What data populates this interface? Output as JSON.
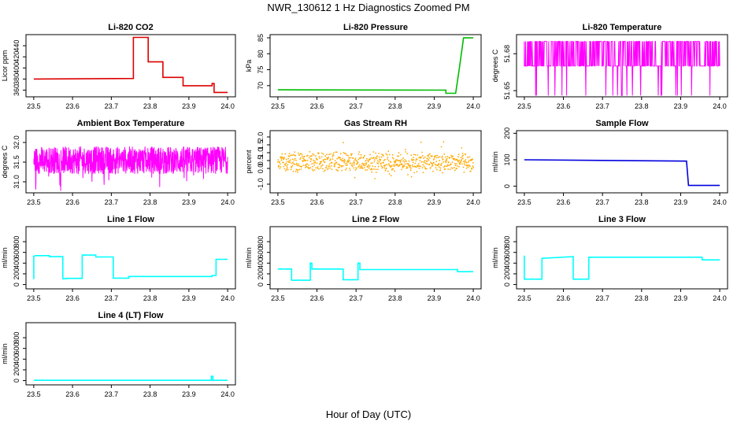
{
  "figure": {
    "title": "NWR_130612  1 Hz Diagnostics Zoomed PM",
    "xlabel": "Hour of Day (UTC)"
  },
  "chart_data": [
    {
      "type": "line",
      "title": "Li-820 CO2",
      "ylabel": "Licor ppm",
      "color": "#dd0000",
      "xlim": [
        23.48,
        24.02
      ],
      "ylim": [
        348,
        460
      ],
      "xticks": [
        "23.5",
        "23.6",
        "23.7",
        "23.8",
        "23.9",
        "24.0"
      ],
      "yticks": [
        "360",
        "380",
        "400",
        "420",
        "440"
      ],
      "series": [
        {
          "x": [
            23.5,
            23.757,
            23.757,
            23.795,
            23.795,
            23.833,
            23.833,
            23.885,
            23.885,
            23.96,
            23.96,
            23.965,
            23.965,
            24.0
          ],
          "y": [
            380,
            381,
            455,
            455,
            411,
            411,
            383,
            383,
            368,
            368,
            372,
            372,
            356,
            356
          ]
        }
      ]
    },
    {
      "type": "line",
      "title": "Li-820 Pressure",
      "ylabel": "kPa",
      "color": "#00bb00",
      "xlim": [
        23.48,
        24.02
      ],
      "ylim": [
        66.5,
        86
      ],
      "xticks": [
        "23.5",
        "23.6",
        "23.7",
        "23.8",
        "23.9",
        "24.0"
      ],
      "yticks": [
        "70",
        "75",
        "80",
        "85"
      ],
      "series": [
        {
          "x": [
            23.5,
            23.93,
            23.93,
            23.955,
            23.965,
            23.975,
            24.0
          ],
          "y": [
            68.7,
            68.6,
            67.6,
            67.6,
            76,
            85,
            85
          ]
        }
      ]
    },
    {
      "type": "line",
      "title": "Li-820 Temperature",
      "ylabel": "degrees C",
      "color": "#ff00ff",
      "xlim": [
        23.48,
        24.02
      ],
      "ylim": [
        51.645,
        51.6955
      ],
      "xticks": [
        "23.5",
        "23.6",
        "23.7",
        "23.8",
        "23.9",
        "24.0"
      ],
      "yticks": [
        "51.65",
        "51.68"
      ],
      "series": [
        {
          "x": [
            23.5,
            24.0
          ],
          "y": [
            51.67,
            51.69
          ]
        }
      ]
    },
    {
      "type": "line",
      "title": "Ambient Box Temperature",
      "ylabel": "degrees C",
      "color": "#ff00ff",
      "xlim": [
        23.48,
        24.02
      ],
      "ylim": [
        30.72,
        32.3
      ],
      "xticks": [
        "23.5",
        "23.6",
        "23.7",
        "23.8",
        "23.9",
        "24.0"
      ],
      "yticks": [
        "31.0",
        "31.5",
        "32.0"
      ],
      "series": [
        {
          "x": [
            23.5,
            24.0
          ],
          "y": [
            31.55,
            31.6
          ]
        }
      ]
    },
    {
      "type": "scatter",
      "title": "Gas Stream RH",
      "ylabel": "percent",
      "color": "#ffaa00",
      "xlim": [
        23.48,
        24.02
      ],
      "ylim": [
        -1.55,
        2.4
      ],
      "xticks": [
        "23.5",
        "23.6",
        "23.7",
        "23.8",
        "23.9",
        "24.0"
      ],
      "yticks": [
        "-1.0",
        "0.0",
        "0.5",
        "1.0",
        "1.5",
        "2.0"
      ],
      "series": [
        {
          "x": [
            23.5,
            24.0
          ],
          "y": [
            0.4,
            0.4
          ]
        }
      ]
    },
    {
      "type": "line",
      "title": "Sample Flow",
      "ylabel": "ml/min",
      "color": "#0000dd",
      "xlim": [
        23.48,
        24.02
      ],
      "ylim": [
        -25,
        210
      ],
      "xticks": [
        "23.5",
        "23.6",
        "23.7",
        "23.8",
        "23.9",
        "24.0"
      ],
      "yticks": [
        "0",
        "100",
        "200"
      ],
      "series": [
        {
          "x": [
            23.5,
            23.915,
            23.915,
            23.92,
            24.0
          ],
          "y": [
            100,
            95,
            95,
            3,
            3
          ]
        }
      ]
    },
    {
      "type": "line",
      "title": "Line 1 Flow",
      "ylabel": "ml/min",
      "color": "#00ffff",
      "xlim": [
        23.48,
        24.02
      ],
      "ylim": [
        -80,
        1080
      ],
      "xticks": [
        "23.5",
        "23.6",
        "23.7",
        "23.8",
        "23.9",
        "24.0"
      ],
      "yticks": [
        "0",
        "200",
        "400",
        "600",
        "800"
      ],
      "series": [
        {
          "x": [
            23.5,
            23.5,
            23.505,
            23.54,
            23.54,
            23.575,
            23.575,
            23.585,
            23.585,
            23.625,
            23.625,
            23.66,
            23.66,
            23.705,
            23.705,
            23.745,
            23.745,
            23.96,
            23.96,
            23.97,
            23.97,
            24.0
          ],
          "y": [
            100,
            530,
            540,
            540,
            520,
            520,
            110,
            110,
            115,
            115,
            550,
            550,
            515,
            515,
            120,
            120,
            150,
            150,
            170,
            170,
            470,
            470
          ]
        }
      ]
    },
    {
      "type": "line",
      "title": "Line 2 Flow",
      "ylabel": "ml/min",
      "color": "#00ffff",
      "xlim": [
        23.48,
        24.02
      ],
      "ylim": [
        -80,
        1080
      ],
      "xticks": [
        "23.5",
        "23.6",
        "23.7",
        "23.8",
        "23.9",
        "24.0"
      ],
      "yticks": [
        "0",
        "200",
        "400",
        "600",
        "800"
      ],
      "series": [
        {
          "x": [
            23.5,
            23.535,
            23.535,
            23.583,
            23.583,
            23.587,
            23.587,
            23.667,
            23.667,
            23.705,
            23.705,
            23.71,
            23.71,
            23.96,
            23.96,
            24.0
          ],
          "y": [
            290,
            290,
            80,
            80,
            400,
            400,
            290,
            290,
            90,
            90,
            400,
            400,
            280,
            280,
            240,
            240
          ]
        }
      ]
    },
    {
      "type": "line",
      "title": "Line 3 Flow",
      "ylabel": "ml/min",
      "color": "#00ffff",
      "xlim": [
        23.48,
        24.02
      ],
      "ylim": [
        -80,
        1080
      ],
      "xticks": [
        "23.5",
        "23.6",
        "23.7",
        "23.8",
        "23.9",
        "24.0"
      ],
      "yticks": [
        "0",
        "200",
        "400",
        "600",
        "800"
      ],
      "series": [
        {
          "x": [
            23.5,
            23.5,
            23.505,
            23.545,
            23.545,
            23.625,
            23.625,
            23.665,
            23.665,
            23.955,
            23.955,
            24.0
          ],
          "y": [
            540,
            100,
            100,
            100,
            490,
            520,
            100,
            100,
            510,
            510,
            460,
            460
          ]
        }
      ]
    },
    {
      "type": "line",
      "title": "Line 4 (LT) Flow",
      "ylabel": "ml/min",
      "color": "#00ffff",
      "xlim": [
        23.48,
        24.02
      ],
      "ylim": [
        -80,
        1080
      ],
      "xticks": [
        "23.5",
        "23.6",
        "23.7",
        "23.8",
        "23.9",
        "24.0"
      ],
      "yticks": [
        "0",
        "200",
        "400",
        "600",
        "800"
      ],
      "series": [
        {
          "x": [
            23.5,
            23.958,
            23.958,
            23.962,
            23.962,
            24.0
          ],
          "y": [
            5,
            5,
            80,
            80,
            5,
            5
          ]
        }
      ]
    }
  ]
}
